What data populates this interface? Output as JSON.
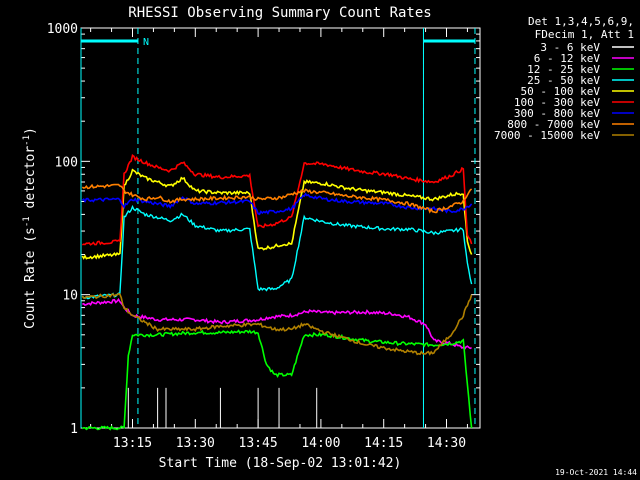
{
  "chart_data": {
    "type": "line",
    "title": "RHESSI Observing Summary Count Rates",
    "xlabel": "Start Time (18-Sep-02 13:01:42)",
    "ylabel_parts": [
      "Count Rate (s",
      "-1",
      " detector",
      "-1",
      ")"
    ],
    "yscale": "log",
    "ylim": [
      1,
      1000
    ],
    "yticks": [
      {
        "v": 1,
        "label": "1"
      },
      {
        "v": 10,
        "label": "10"
      },
      {
        "v": 100,
        "label": "100"
      },
      {
        "v": 1000,
        "label": "1000"
      }
    ],
    "xlim_min": [
      1.7,
      97
    ],
    "xticks": [
      {
        "m": 14,
        "label": "13:15"
      },
      {
        "m": 29,
        "label": "13:30"
      },
      {
        "m": 44,
        "label": "13:45"
      },
      {
        "m": 59,
        "label": "14:00"
      },
      {
        "m": 74,
        "label": "14:15"
      },
      {
        "m": 89,
        "label": "14:30"
      }
    ],
    "legend_header": [
      "Det 1,3,4,5,6,9,",
      "FDecim 1, Att 1"
    ],
    "legend_position": "right",
    "series": [
      {
        "name": "3 - 6 keV",
        "color": "#ffffff",
        "style": "bursts",
        "x": [
          2,
          12,
          13,
          20,
          22,
          29,
          35,
          44,
          49,
          58,
          68,
          78,
          86
        ],
        "y": [
          1,
          1,
          2,
          2,
          2,
          1,
          2,
          2,
          2,
          2,
          1,
          1,
          1
        ]
      },
      {
        "name": "6 - 12 keV",
        "color": "#ff00ff",
        "x": [
          2,
          11,
          12,
          14,
          20,
          29,
          35,
          44,
          47,
          52,
          56,
          61,
          70,
          76,
          80,
          84,
          86,
          90,
          93,
          95
        ],
        "y": [
          8.5,
          9,
          8,
          7,
          6.5,
          6.5,
          6.2,
          6.5,
          6.8,
          7,
          7.5,
          7.3,
          7.4,
          7.2,
          6.8,
          6,
          4.5,
          4.3,
          4,
          4
        ]
      },
      {
        "name": "12 - 25 keV",
        "color": "#00ff00",
        "x": [
          2,
          12,
          13,
          14,
          20,
          29,
          35,
          42,
          44,
          46,
          48,
          52,
          55,
          60,
          70,
          78,
          86,
          90,
          93,
          95
        ],
        "y": [
          1,
          1,
          3.5,
          5,
          5,
          5.2,
          5.2,
          5.3,
          5.2,
          3,
          2.5,
          2.5,
          5,
          5,
          4.5,
          4.3,
          4.2,
          4.3,
          4.5,
          1
        ]
      },
      {
        "name": "25 - 50 keV",
        "color": "#00ffff",
        "x": [
          2,
          11,
          12,
          14,
          17,
          20,
          23,
          26,
          29,
          35,
          41,
          42,
          44,
          48,
          50,
          52,
          55,
          60,
          65,
          70,
          75,
          80,
          86,
          90,
          93,
          94,
          95
        ],
        "y": [
          9.5,
          10,
          38,
          45,
          40,
          38,
          36,
          40,
          33,
          30,
          31,
          31,
          11,
          11,
          12,
          13,
          38,
          35,
          33,
          32,
          31,
          31,
          29,
          30,
          31,
          17,
          12
        ]
      },
      {
        "name": "50 - 100 keV",
        "color": "#ffff00",
        "x": [
          2,
          11,
          12,
          14,
          17,
          20,
          23,
          26,
          29,
          35,
          41,
          42,
          44,
          48,
          50,
          52,
          55,
          60,
          65,
          70,
          75,
          80,
          86,
          90,
          93,
          94,
          95
        ],
        "y": [
          19,
          20,
          65,
          85,
          75,
          70,
          65,
          75,
          60,
          58,
          58,
          58,
          22,
          23,
          24,
          24,
          70,
          68,
          63,
          60,
          58,
          55,
          52,
          56,
          58,
          25,
          20
        ]
      },
      {
        "name": "100 - 300 keV",
        "color": "#ff0000",
        "x": [
          2,
          11,
          12,
          14,
          17,
          20,
          23,
          26,
          29,
          35,
          41,
          42,
          44,
          48,
          50,
          52,
          55,
          60,
          65,
          70,
          75,
          80,
          86,
          90,
          93,
          94,
          95
        ],
        "y": [
          24,
          25,
          80,
          108,
          98,
          90,
          85,
          98,
          80,
          76,
          78,
          78,
          32,
          34,
          36,
          38,
          97,
          95,
          88,
          83,
          80,
          74,
          70,
          78,
          88,
          28,
          24
        ]
      },
      {
        "name": "300 - 800 keV",
        "color": "#0000ff",
        "x": [
          2,
          11,
          12,
          14,
          17,
          20,
          23,
          26,
          29,
          35,
          41,
          42,
          44,
          48,
          50,
          52,
          55,
          60,
          65,
          70,
          75,
          80,
          86,
          90,
          93,
          94,
          95
        ],
        "y": [
          51,
          52,
          46,
          52,
          50,
          48,
          46,
          54,
          48,
          49,
          50,
          50,
          41,
          42,
          43,
          44,
          56,
          52,
          50,
          49,
          48,
          45,
          44,
          42,
          44,
          46,
          48
        ]
      },
      {
        "name": "800 - 7000 keV",
        "color": "#ff8000",
        "x": [
          2,
          11,
          12,
          14,
          17,
          20,
          23,
          26,
          29,
          35,
          41,
          42,
          44,
          48,
          50,
          52,
          55,
          60,
          65,
          70,
          75,
          80,
          86,
          90,
          93,
          94,
          95
        ],
        "y": [
          64,
          66,
          60,
          56,
          52,
          54,
          50,
          52,
          52,
          53,
          54,
          54,
          52,
          53,
          54,
          57,
          60,
          58,
          55,
          53,
          51,
          48,
          42,
          46,
          50,
          57,
          62
        ]
      },
      {
        "name": "7000 - 15000 keV",
        "color": "#b08000",
        "x": [
          2,
          11,
          12,
          14,
          20,
          29,
          35,
          44,
          48,
          52,
          55,
          60,
          66,
          70,
          78,
          84,
          86,
          90,
          93,
          95
        ],
        "y": [
          9.5,
          10,
          8,
          7,
          5.5,
          5.5,
          5.8,
          6,
          5.5,
          5.5,
          6,
          5.2,
          4.6,
          4.2,
          3.8,
          3.6,
          3.7,
          5,
          7,
          10
        ]
      }
    ],
    "attenuator_bars": [
      {
        "from": 1.7,
        "to": 15.3
      },
      {
        "from": 83.5,
        "to": 95.8
      }
    ],
    "night_markers": [
      {
        "m": 1.7
      },
      {
        "m": 15.3,
        "label": "N"
      },
      {
        "m": 83.5
      },
      {
        "m": 95.8
      }
    ],
    "footer_date": "19-Oct-2021 14:44"
  }
}
